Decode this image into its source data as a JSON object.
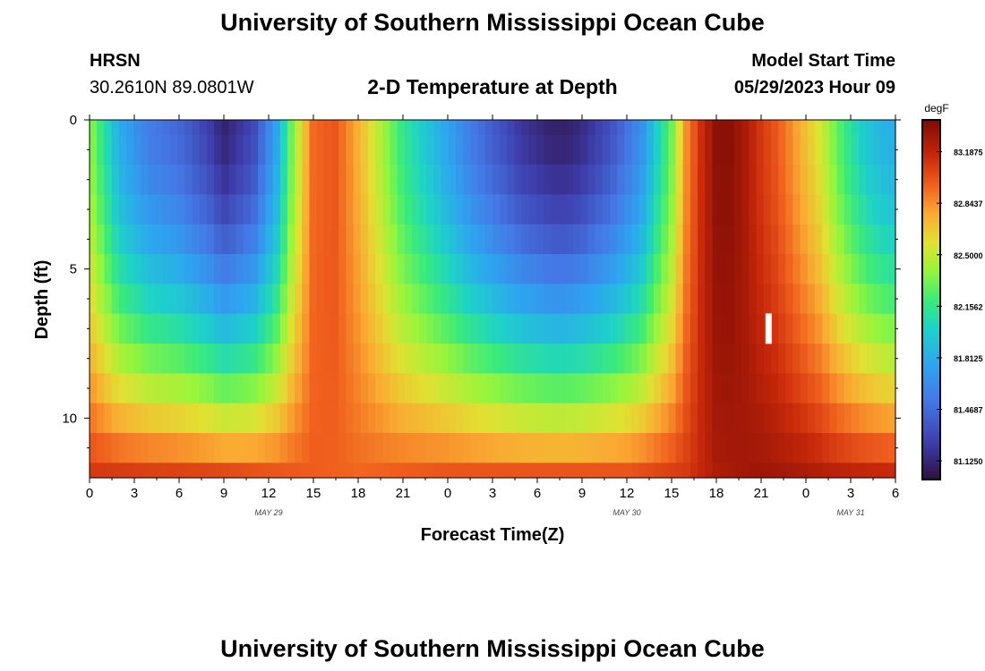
{
  "title": "University of Southern Mississippi Ocean Cube",
  "title_repeat": "University of Southern Mississippi Ocean Cube",
  "station": {
    "name": "HRSN",
    "coords": "30.2610N  89.0801W"
  },
  "model": {
    "label": "Model Start Time",
    "start": "05/29/2023 Hour 09"
  },
  "chart_data": {
    "type": "heatmap",
    "title": "2-D Temperature at Depth",
    "xlabel": "Forecast Time(Z)",
    "ylabel": "Depth (ft)",
    "units": "degF",
    "x_ticks": [
      "0",
      "3",
      "6",
      "9",
      "12",
      "15",
      "18",
      "21",
      "0",
      "3",
      "6",
      "9",
      "12",
      "15",
      "18",
      "21",
      "0",
      "3",
      "6"
    ],
    "x_range_hours": [
      0,
      54
    ],
    "day_labels": [
      {
        "hour": 12,
        "text": "MAY 29"
      },
      {
        "hour": 36,
        "text": "MAY 30"
      },
      {
        "hour": 51,
        "text": "MAY 31"
      }
    ],
    "y_ticks": [
      0,
      5,
      10
    ],
    "y_range_ft": [
      0,
      12
    ],
    "colorbar": {
      "min": 81.0,
      "max": 83.4,
      "ticks": [
        "83.1875",
        "82.8437",
        "82.5000",
        "82.1562",
        "81.8125",
        "81.4687",
        "81.1250"
      ],
      "tick_values": [
        83.1875,
        82.84375,
        82.5,
        82.15625,
        81.8125,
        81.46875,
        81.125
      ]
    },
    "depths_ft": [
      0,
      1,
      2,
      3,
      4,
      5,
      6,
      7,
      8,
      9,
      10,
      11,
      12
    ],
    "marker": {
      "hour": 45.5,
      "depth_ft": 7.0,
      "note": "white vertical marker"
    },
    "surface_temp_profile": {
      "hours": [
        0,
        2,
        4,
        6,
        8,
        9,
        11,
        12.5,
        13.5,
        15,
        16.5,
        18,
        19.5,
        21,
        22.5,
        24,
        25.5,
        27,
        29,
        31,
        32,
        33,
        35,
        37,
        39,
        40,
        41,
        42,
        43,
        44,
        45,
        46,
        47,
        48,
        49,
        50,
        51,
        52,
        53,
        54
      ],
      "values": [
        82.4,
        81.8,
        81.55,
        81.45,
        81.25,
        81.1,
        81.3,
        81.75,
        82.3,
        82.95,
        83.0,
        82.75,
        82.45,
        82.15,
        81.95,
        81.75,
        81.55,
        81.4,
        81.2,
        81.1,
        81.1,
        81.15,
        81.35,
        81.65,
        82.3,
        82.85,
        83.15,
        83.35,
        83.35,
        83.25,
        83.1,
        83.0,
        82.85,
        82.7,
        82.55,
        82.3,
        82.1,
        81.95,
        81.85,
        81.8
      ]
    },
    "bottom_temp_profile": {
      "hours": [
        0,
        8,
        12,
        18,
        24,
        30,
        36,
        40,
        42,
        45,
        48,
        50,
        54
      ],
      "values": [
        83.1,
        83.05,
        83.0,
        82.95,
        83.0,
        83.0,
        83.0,
        83.1,
        83.25,
        83.3,
        83.25,
        83.2,
        83.15
      ]
    }
  }
}
